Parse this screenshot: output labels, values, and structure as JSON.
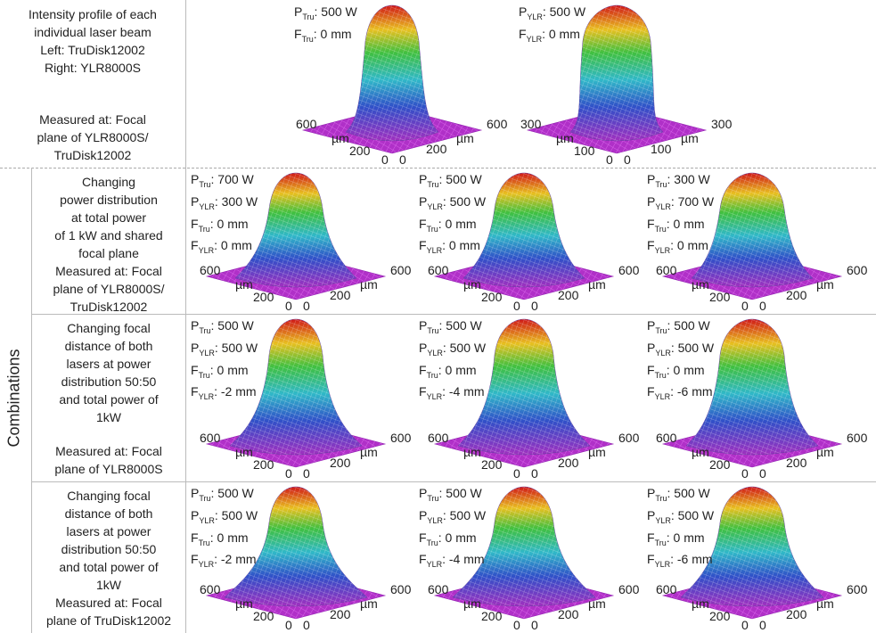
{
  "combinations_label": "Combinations",
  "rows": [
    {
      "description": [
        "Intensity profile of each",
        "individual laser beam",
        "Left: TruDisk12002",
        "Right: YLR8000S"
      ],
      "measured": [
        "Measured at: Focal",
        "plane of YLR8000S/",
        "TruDisk12002"
      ],
      "plots": [
        {
          "params": [
            {
              "sym": "P",
              "sub": "Tru",
              "text": ": 500 W"
            },
            {
              "sym": "F",
              "sub": "Tru",
              "text": ": 0 mm"
            }
          ],
          "axis_left": [
            "600",
            "µm",
            "200",
            "0"
          ],
          "axis_right": [
            "0",
            "200",
            "µm",
            "600"
          ]
        },
        {
          "params": [
            {
              "sym": "P",
              "sub": "YLR",
              "text": ": 500 W"
            },
            {
              "sym": "F",
              "sub": "YLR",
              "text": ": 0 mm"
            }
          ],
          "axis_left": [
            "300",
            "µm",
            "100",
            "0"
          ],
          "axis_right": [
            "0",
            "100",
            "µm",
            "300"
          ]
        }
      ]
    },
    {
      "description": [
        "Changing",
        "power distribution",
        "at total power",
        "of 1 kW and shared",
        "focal plane"
      ],
      "measured": [
        "Measured at: Focal",
        "plane of YLR8000S/",
        "TruDisk12002"
      ],
      "plots": [
        {
          "params": [
            {
              "sym": "P",
              "sub": "Tru",
              "text": ": 700 W"
            },
            {
              "sym": "P",
              "sub": "YLR",
              "text": ": 300 W"
            },
            {
              "sym": "F",
              "sub": "Tru",
              "text": ": 0 mm"
            },
            {
              "sym": "F",
              "sub": "YLR",
              "text": ": 0 mm"
            }
          ],
          "axis_left": [
            "600",
            "µm",
            "200",
            "0"
          ],
          "axis_right": [
            "0",
            "200",
            "µm",
            "600"
          ]
        },
        {
          "params": [
            {
              "sym": "P",
              "sub": "Tru",
              "text": ": 500 W"
            },
            {
              "sym": "P",
              "sub": "YLR",
              "text": ": 500 W"
            },
            {
              "sym": "F",
              "sub": "Tru",
              "text": ": 0 mm"
            },
            {
              "sym": "F",
              "sub": "YLR",
              "text": ": 0 mm"
            }
          ],
          "axis_left": [
            "600",
            "µm",
            "200",
            "0"
          ],
          "axis_right": [
            "0",
            "200",
            "µm",
            "600"
          ]
        },
        {
          "params": [
            {
              "sym": "P",
              "sub": "Tru",
              "text": ": 300 W"
            },
            {
              "sym": "P",
              "sub": "YLR",
              "text": ": 700 W"
            },
            {
              "sym": "F",
              "sub": "Tru",
              "text": ": 0 mm"
            },
            {
              "sym": "F",
              "sub": "YLR",
              "text": ": 0 mm"
            }
          ],
          "axis_left": [
            "600",
            "µm",
            "200",
            "0"
          ],
          "axis_right": [
            "0",
            "200",
            "µm",
            "600"
          ]
        }
      ]
    },
    {
      "description": [
        "Changing focal",
        "distance of both",
        "lasers at power",
        "distribution 50:50",
        "and total power of",
        "1kW"
      ],
      "measured": [
        "Measured at: Focal",
        "plane of YLR8000S"
      ],
      "plots": [
        {
          "params": [
            {
              "sym": "P",
              "sub": "Tru",
              "text": ": 500 W"
            },
            {
              "sym": "P",
              "sub": "YLR",
              "text": ": 500 W"
            },
            {
              "sym": "F",
              "sub": "Tru",
              "text": ": 0 mm"
            },
            {
              "sym": "F",
              "sub": "YLR",
              "text": ": -2 mm"
            }
          ],
          "axis_left": [
            "600",
            "µm",
            "200",
            "0"
          ],
          "axis_right": [
            "0",
            "200",
            "µm",
            "600"
          ]
        },
        {
          "params": [
            {
              "sym": "P",
              "sub": "Tru",
              "text": ": 500 W"
            },
            {
              "sym": "P",
              "sub": "YLR",
              "text": ": 500 W"
            },
            {
              "sym": "F",
              "sub": "Tru",
              "text": ": 0 mm"
            },
            {
              "sym": "F",
              "sub": "YLR",
              "text": ": -4 mm"
            }
          ],
          "axis_left": [
            "600",
            "µm",
            "200",
            "0"
          ],
          "axis_right": [
            "0",
            "200",
            "µm",
            "600"
          ]
        },
        {
          "params": [
            {
              "sym": "P",
              "sub": "Tru",
              "text": ": 500 W"
            },
            {
              "sym": "P",
              "sub": "YLR",
              "text": ": 500 W"
            },
            {
              "sym": "F",
              "sub": "Tru",
              "text": ": 0 mm"
            },
            {
              "sym": "F",
              "sub": "YLR",
              "text": ": -6 mm"
            }
          ],
          "axis_left": [
            "600",
            "µm",
            "200",
            "0"
          ],
          "axis_right": [
            "0",
            "200",
            "µm",
            "600"
          ]
        }
      ]
    },
    {
      "description": [
        "Changing focal",
        "distance of both",
        "lasers at power",
        "distribution 50:50",
        "and total power of",
        "1kW"
      ],
      "measured": [
        "Measured at: Focal",
        "plane of TruDisk12002"
      ],
      "plots": [
        {
          "params": [
            {
              "sym": "P",
              "sub": "Tru",
              "text": ": 500 W"
            },
            {
              "sym": "P",
              "sub": "YLR",
              "text": ": 500 W"
            },
            {
              "sym": "F",
              "sub": "Tru",
              "text": ": 0 mm"
            },
            {
              "sym": "F",
              "sub": "YLR",
              "text": ": -2 mm"
            }
          ],
          "axis_left": [
            "600",
            "µm",
            "200",
            "0"
          ],
          "axis_right": [
            "0",
            "200",
            "µm",
            "600"
          ]
        },
        {
          "params": [
            {
              "sym": "P",
              "sub": "Tru",
              "text": ": 500 W"
            },
            {
              "sym": "P",
              "sub": "YLR",
              "text": ": 500 W"
            },
            {
              "sym": "F",
              "sub": "Tru",
              "text": ": 0 mm"
            },
            {
              "sym": "F",
              "sub": "YLR",
              "text": ": -4 mm"
            }
          ],
          "axis_left": [
            "600",
            "µm",
            "200",
            "0"
          ],
          "axis_right": [
            "0",
            "200",
            "µm",
            "600"
          ]
        },
        {
          "params": [
            {
              "sym": "P",
              "sub": "Tru",
              "text": ": 500 W"
            },
            {
              "sym": "P",
              "sub": "YLR",
              "text": ": 500 W"
            },
            {
              "sym": "F",
              "sub": "Tru",
              "text": ": 0 mm"
            },
            {
              "sym": "F",
              "sub": "YLR",
              "text": ": -6 mm"
            }
          ],
          "axis_left": [
            "600",
            "µm",
            "200",
            "0"
          ],
          "axis_right": [
            "0",
            "200",
            "µm",
            "600"
          ]
        }
      ]
    }
  ]
}
